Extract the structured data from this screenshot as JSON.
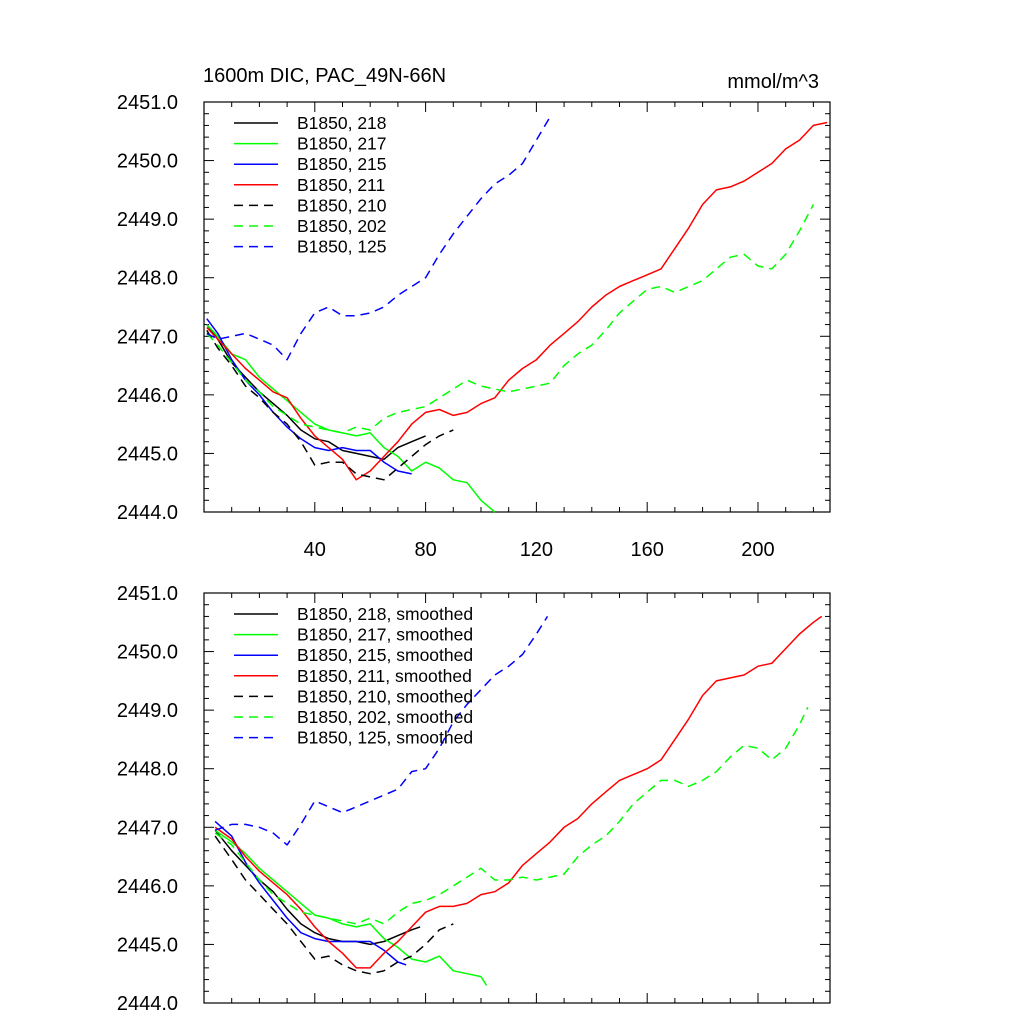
{
  "chart_data": [
    {
      "type": "line",
      "title": "1600m DIC, PAC_49N-66N",
      "units": "mmol/m^3",
      "xlim": [
        0,
        226
      ],
      "ylim": [
        2444.0,
        2451.0
      ],
      "x_ticks": [
        40,
        80,
        120,
        160,
        200
      ],
      "x_tick_labels": [
        "40",
        "80",
        "120",
        "160",
        "200"
      ],
      "y_ticks": [
        2444,
        2445,
        2446,
        2447,
        2448,
        2449,
        2450,
        2451
      ],
      "y_tick_labels": [
        "2444.0",
        "2445.0",
        "2446.0",
        "2447.0",
        "2448.0",
        "2449.0",
        "2450.0",
        "2451.0"
      ],
      "legend_position": "top-left",
      "grid": false,
      "series": [
        {
          "name": "B1850, 218",
          "color": "#000000",
          "dash": "solid",
          "x": [
            1,
            5,
            10,
            15,
            20,
            25,
            30,
            35,
            40,
            45,
            50,
            55,
            60,
            65,
            70,
            75,
            80
          ],
          "y": [
            2447.2,
            2446.95,
            2446.55,
            2446.3,
            2446.05,
            2445.85,
            2445.65,
            2445.4,
            2445.25,
            2445.2,
            2445.05,
            2445.0,
            2444.95,
            2444.9,
            2445.1,
            2445.2,
            2445.3
          ]
        },
        {
          "name": "B1850, 217",
          "color": "#00ff00",
          "dash": "solid",
          "x": [
            1,
            5,
            10,
            15,
            20,
            25,
            30,
            35,
            40,
            45,
            50,
            55,
            60,
            65,
            70,
            75,
            80,
            85,
            90,
            95,
            100,
            105
          ],
          "y": [
            2447.2,
            2447.0,
            2446.7,
            2446.6,
            2446.3,
            2446.1,
            2445.9,
            2445.7,
            2445.5,
            2445.4,
            2445.35,
            2445.3,
            2445.35,
            2445.1,
            2444.95,
            2444.7,
            2444.85,
            2444.75,
            2444.55,
            2444.5,
            2444.2,
            2444.0
          ]
        },
        {
          "name": "B1850, 215",
          "color": "#0000ff",
          "dash": "solid",
          "x": [
            1,
            5,
            10,
            15,
            20,
            25,
            30,
            35,
            40,
            45,
            50,
            55,
            60,
            65,
            70,
            75
          ],
          "y": [
            2447.3,
            2447.05,
            2446.6,
            2446.25,
            2446.0,
            2445.7,
            2445.45,
            2445.25,
            2445.1,
            2445.05,
            2445.1,
            2445.05,
            2445.05,
            2444.85,
            2444.7,
            2444.65
          ]
        },
        {
          "name": "B1850, 211",
          "color": "#ff0000",
          "dash": "solid",
          "x": [
            1,
            5,
            10,
            15,
            20,
            25,
            30,
            35,
            40,
            45,
            50,
            55,
            60,
            65,
            70,
            75,
            80,
            85,
            90,
            95,
            100,
            105,
            110,
            115,
            120,
            125,
            130,
            135,
            140,
            145,
            150,
            155,
            160,
            165,
            170,
            175,
            180,
            185,
            190,
            195,
            200,
            205,
            210,
            215,
            220,
            225
          ],
          "y": [
            2447.15,
            2446.95,
            2446.7,
            2446.45,
            2446.25,
            2446.05,
            2445.95,
            2445.6,
            2445.3,
            2445.1,
            2444.9,
            2444.55,
            2444.7,
            2444.95,
            2445.2,
            2445.5,
            2445.7,
            2445.75,
            2445.65,
            2445.7,
            2445.85,
            2445.95,
            2446.25,
            2446.45,
            2446.6,
            2446.85,
            2447.05,
            2447.25,
            2447.5,
            2447.7,
            2447.85,
            2447.95,
            2448.05,
            2448.15,
            2448.5,
            2448.85,
            2449.25,
            2449.5,
            2449.55,
            2449.65,
            2449.8,
            2449.95,
            2450.2,
            2450.35,
            2450.6,
            2450.65
          ]
        },
        {
          "name": "B1850, 210",
          "color": "#000000",
          "dash": "dashed",
          "x": [
            1,
            5,
            10,
            15,
            20,
            25,
            30,
            35,
            40,
            45,
            50,
            55,
            60,
            65,
            70,
            75,
            80,
            85,
            90
          ],
          "y": [
            2447.1,
            2446.8,
            2446.5,
            2446.15,
            2445.95,
            2445.7,
            2445.5,
            2445.2,
            2444.8,
            2444.85,
            2444.85,
            2444.65,
            2444.6,
            2444.55,
            2444.75,
            2444.95,
            2445.15,
            2445.3,
            2445.4
          ]
        },
        {
          "name": "B1850, 202",
          "color": "#00ff00",
          "dash": "dashed",
          "x": [
            1,
            5,
            10,
            15,
            20,
            25,
            30,
            35,
            40,
            45,
            50,
            55,
            60,
            65,
            70,
            75,
            80,
            85,
            90,
            95,
            100,
            105,
            110,
            115,
            120,
            125,
            130,
            135,
            140,
            145,
            150,
            155,
            160,
            165,
            170,
            175,
            180,
            185,
            190,
            195,
            200,
            205,
            210,
            215,
            220
          ],
          "y": [
            2447.05,
            2446.85,
            2446.55,
            2446.25,
            2446.05,
            2445.8,
            2445.65,
            2445.5,
            2445.45,
            2445.4,
            2445.35,
            2445.45,
            2445.4,
            2445.6,
            2445.7,
            2445.75,
            2445.8,
            2445.95,
            2446.1,
            2446.25,
            2446.15,
            2446.1,
            2446.05,
            2446.1,
            2446.15,
            2446.2,
            2446.5,
            2446.7,
            2446.85,
            2447.1,
            2447.4,
            2447.6,
            2447.8,
            2447.85,
            2447.75,
            2447.85,
            2447.95,
            2448.15,
            2448.35,
            2448.4,
            2448.2,
            2448.15,
            2448.4,
            2448.8,
            2449.25
          ]
        },
        {
          "name": "B1850, 125",
          "color": "#0000ff",
          "dash": "dashed",
          "x": [
            1,
            5,
            10,
            15,
            20,
            25,
            30,
            35,
            40,
            45,
            50,
            55,
            60,
            65,
            70,
            75,
            80,
            85,
            90,
            95,
            100,
            105,
            110,
            115,
            120,
            125
          ],
          "y": [
            2447.05,
            2446.95,
            2447.0,
            2447.05,
            2446.95,
            2446.85,
            2446.6,
            2447.05,
            2447.4,
            2447.5,
            2447.35,
            2447.35,
            2447.4,
            2447.5,
            2447.7,
            2447.85,
            2448.0,
            2448.4,
            2448.75,
            2449.05,
            2449.35,
            2449.6,
            2449.75,
            2449.95,
            2450.35,
            2450.75
          ]
        }
      ]
    },
    {
      "type": "line",
      "xlim": [
        0,
        226
      ],
      "ylim": [
        2444.0,
        2451.0
      ],
      "x_ticks": [
        40,
        80,
        120,
        160,
        200
      ],
      "y_ticks": [
        2444,
        2445,
        2446,
        2447,
        2448,
        2449,
        2450,
        2451
      ],
      "y_tick_labels": [
        "2444.0",
        "2445.0",
        "2446.0",
        "2447.0",
        "2448.0",
        "2449.0",
        "2450.0",
        "2451.0"
      ],
      "legend_position": "top-left",
      "grid": false,
      "series": [
        {
          "name": "B1850, 218, smoothed",
          "color": "#000000",
          "dash": "solid",
          "x": [
            4,
            10,
            15,
            20,
            25,
            30,
            35,
            40,
            45,
            50,
            55,
            60,
            65,
            70,
            75,
            78
          ],
          "y": [
            2446.95,
            2446.6,
            2446.35,
            2446.1,
            2445.9,
            2445.6,
            2445.35,
            2445.2,
            2445.1,
            2445.05,
            2445.05,
            2445.0,
            2445.05,
            2445.15,
            2445.25,
            2445.3
          ]
        },
        {
          "name": "B1850, 217, smoothed",
          "color": "#00ff00",
          "dash": "solid",
          "x": [
            4,
            10,
            15,
            20,
            25,
            30,
            35,
            40,
            45,
            50,
            55,
            60,
            65,
            70,
            75,
            80,
            85,
            90,
            95,
            100,
            102
          ],
          "y": [
            2446.95,
            2446.75,
            2446.55,
            2446.3,
            2446.1,
            2445.9,
            2445.7,
            2445.5,
            2445.45,
            2445.35,
            2445.3,
            2445.35,
            2445.1,
            2444.95,
            2444.75,
            2444.7,
            2444.8,
            2444.55,
            2444.5,
            2444.45,
            2444.3
          ]
        },
        {
          "name": "B1850, 215, smoothed",
          "color": "#0000ff",
          "dash": "solid",
          "x": [
            4,
            10,
            15,
            20,
            25,
            30,
            35,
            40,
            45,
            50,
            55,
            60,
            65,
            70,
            73
          ],
          "y": [
            2447.1,
            2446.85,
            2446.4,
            2446.05,
            2445.75,
            2445.45,
            2445.2,
            2445.1,
            2445.05,
            2445.05,
            2445.05,
            2445.05,
            2444.9,
            2444.7,
            2444.65
          ]
        },
        {
          "name": "B1850, 211, smoothed",
          "color": "#ff0000",
          "dash": "solid",
          "x": [
            4,
            10,
            15,
            20,
            25,
            30,
            35,
            40,
            45,
            50,
            55,
            60,
            65,
            70,
            75,
            80,
            85,
            90,
            95,
            100,
            105,
            110,
            115,
            120,
            125,
            130,
            135,
            140,
            145,
            150,
            155,
            160,
            165,
            170,
            175,
            180,
            185,
            190,
            195,
            200,
            205,
            210,
            215,
            220,
            223
          ],
          "y": [
            2447.0,
            2446.8,
            2446.5,
            2446.25,
            2446.05,
            2445.85,
            2445.6,
            2445.3,
            2445.05,
            2444.85,
            2444.6,
            2444.6,
            2444.85,
            2445.05,
            2445.3,
            2445.55,
            2445.65,
            2445.65,
            2445.7,
            2445.85,
            2445.9,
            2446.05,
            2446.35,
            2446.55,
            2446.75,
            2447.0,
            2447.15,
            2447.4,
            2447.6,
            2447.8,
            2447.9,
            2448.0,
            2448.15,
            2448.5,
            2448.85,
            2449.25,
            2449.5,
            2449.55,
            2449.6,
            2449.75,
            2449.8,
            2450.05,
            2450.3,
            2450.5,
            2450.6
          ]
        },
        {
          "name": "B1850, 210, smoothed",
          "color": "#000000",
          "dash": "dashed",
          "x": [
            4,
            10,
            15,
            20,
            25,
            30,
            35,
            40,
            45,
            50,
            55,
            60,
            65,
            70,
            75,
            80,
            85,
            90
          ],
          "y": [
            2446.85,
            2446.45,
            2446.1,
            2445.85,
            2445.6,
            2445.35,
            2445.05,
            2444.75,
            2444.8,
            2444.65,
            2444.55,
            2444.5,
            2444.55,
            2444.7,
            2444.8,
            2445.0,
            2445.25,
            2445.35
          ]
        },
        {
          "name": "B1850, 202, smoothed",
          "color": "#00ff00",
          "dash": "dashed",
          "x": [
            4,
            10,
            15,
            20,
            25,
            30,
            35,
            40,
            45,
            50,
            55,
            60,
            65,
            70,
            75,
            80,
            85,
            90,
            95,
            100,
            105,
            110,
            115,
            120,
            125,
            130,
            135,
            140,
            145,
            150,
            155,
            160,
            165,
            170,
            175,
            180,
            185,
            190,
            195,
            200,
            205,
            210,
            215,
            218
          ],
          "y": [
            2446.9,
            2446.7,
            2446.4,
            2446.1,
            2445.85,
            2445.7,
            2445.55,
            2445.5,
            2445.45,
            2445.4,
            2445.35,
            2445.45,
            2445.35,
            2445.55,
            2445.7,
            2445.75,
            2445.85,
            2446.0,
            2446.15,
            2446.3,
            2446.1,
            2446.1,
            2446.15,
            2446.1,
            2446.15,
            2446.2,
            2446.5,
            2446.7,
            2446.85,
            2447.1,
            2447.4,
            2447.6,
            2447.8,
            2447.8,
            2447.7,
            2447.8,
            2447.95,
            2448.2,
            2448.4,
            2448.35,
            2448.15,
            2448.35,
            2448.75,
            2449.05
          ]
        },
        {
          "name": "B1850, 125, smoothed",
          "color": "#0000ff",
          "dash": "dashed",
          "x": [
            4,
            10,
            15,
            20,
            25,
            30,
            35,
            40,
            45,
            50,
            55,
            60,
            65,
            70,
            75,
            80,
            85,
            90,
            95,
            100,
            105,
            110,
            115,
            120,
            124
          ],
          "y": [
            2446.95,
            2447.05,
            2447.05,
            2447.0,
            2446.9,
            2446.7,
            2447.05,
            2447.45,
            2447.35,
            2447.25,
            2447.35,
            2447.45,
            2447.55,
            2447.65,
            2447.95,
            2448.0,
            2448.35,
            2448.8,
            2449.1,
            2449.35,
            2449.6,
            2449.75,
            2449.95,
            2450.3,
            2450.6
          ]
        }
      ]
    }
  ]
}
